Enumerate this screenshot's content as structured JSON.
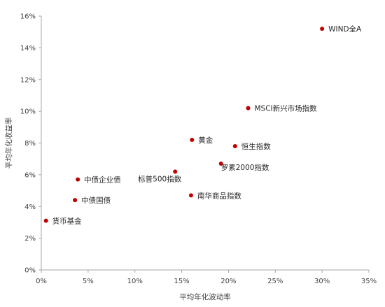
{
  "chart_data": {
    "type": "scatter",
    "title": "",
    "xlabel": "平均年化波动率",
    "ylabel": "平均年化收益率",
    "xlim": [
      0,
      0.35
    ],
    "ylim": [
      0,
      0.16
    ],
    "x_ticks": [
      0,
      0.05,
      0.1,
      0.15,
      0.2,
      0.25,
      0.3,
      0.35
    ],
    "x_tick_labels": [
      "0%",
      "5%",
      "10%",
      "15%",
      "20%",
      "25%",
      "30%",
      "35%"
    ],
    "y_ticks": [
      0,
      0.02,
      0.04,
      0.06,
      0.08,
      0.1,
      0.12,
      0.14,
      0.16
    ],
    "y_tick_labels": [
      "0%",
      "2%",
      "4%",
      "6%",
      "8%",
      "10%",
      "12%",
      "14%",
      "16%"
    ],
    "grid": false,
    "legend": "none",
    "marker_color": "#C00000",
    "points": [
      {
        "label": "WIND全A",
        "x": 0.3,
        "y": 0.152,
        "label_side": "right"
      },
      {
        "label": "MSCI新兴市场指数",
        "x": 0.221,
        "y": 0.102,
        "label_side": "right"
      },
      {
        "label": "黄金",
        "x": 0.161,
        "y": 0.082,
        "label_side": "right"
      },
      {
        "label": "恒生指数",
        "x": 0.207,
        "y": 0.078,
        "label_side": "right"
      },
      {
        "label": "罗素2000指数",
        "x": 0.192,
        "y": 0.067,
        "label_side": "below-right"
      },
      {
        "label": "标普500指数",
        "x": 0.143,
        "y": 0.062,
        "label_side": "below-left"
      },
      {
        "label": "中债企业债",
        "x": 0.039,
        "y": 0.057,
        "label_side": "right"
      },
      {
        "label": "南华商品指数",
        "x": 0.16,
        "y": 0.047,
        "label_side": "right"
      },
      {
        "label": "中债国债",
        "x": 0.036,
        "y": 0.044,
        "label_side": "right"
      },
      {
        "label": "货币基金",
        "x": 0.005,
        "y": 0.031,
        "label_side": "right"
      }
    ]
  }
}
